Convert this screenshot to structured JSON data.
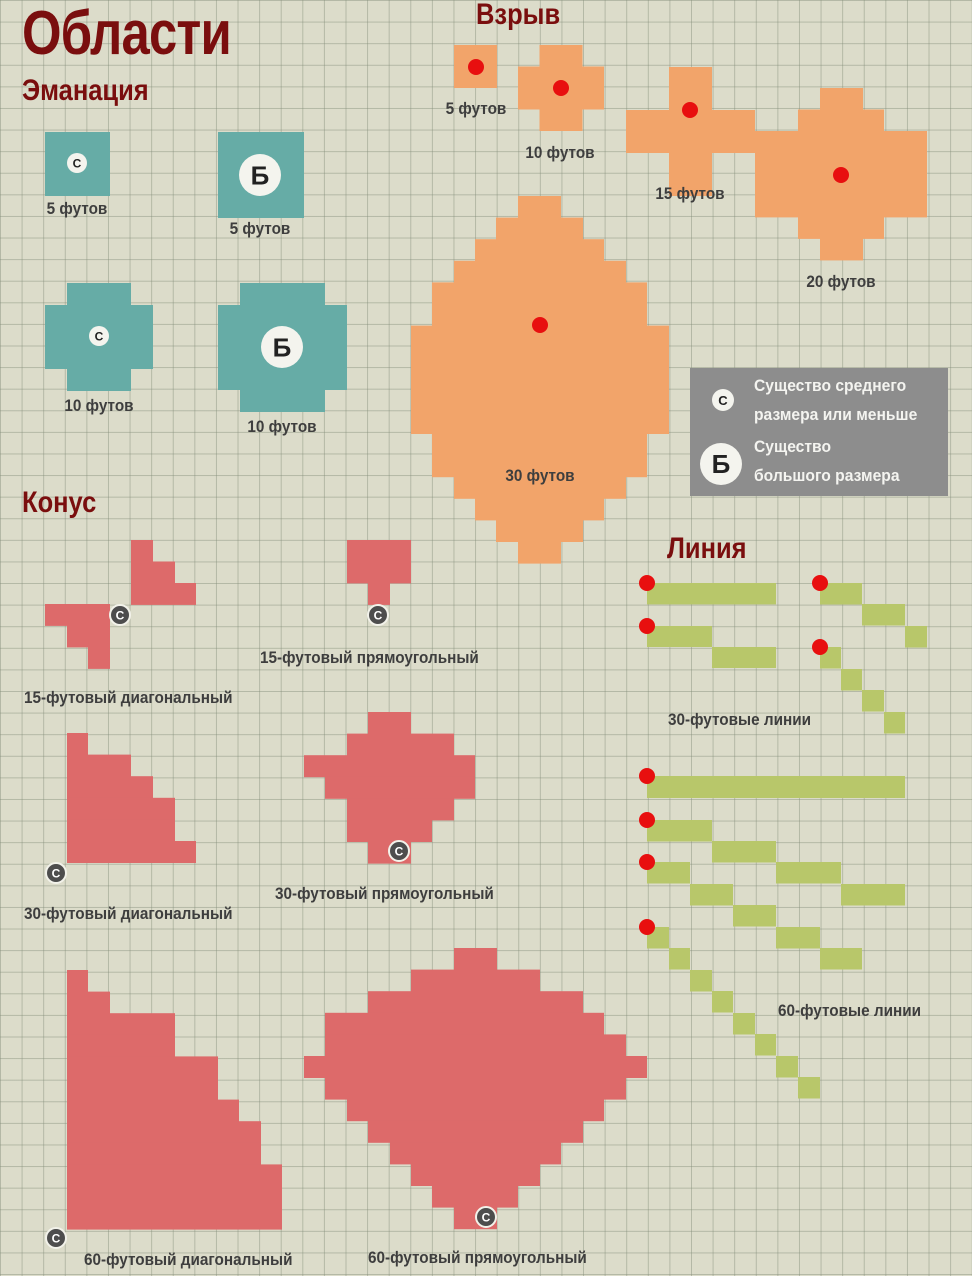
{
  "title": "Области",
  "sections": {
    "emanation": "Эманация",
    "burst": "Взрыв",
    "cone": "Конус",
    "line": "Линия"
  },
  "emanation_labels": [
    "5 футов",
    "5 футов",
    "10 футов",
    "10 футов"
  ],
  "burst_labels": [
    "5 футов",
    "10 футов",
    "15 футов",
    "20 футов",
    "30 футов"
  ],
  "cone_labels": {
    "d15": "15-футовый диагональный",
    "r15": "15-футовый прямоугольный",
    "d30": "30-футовый диагональный",
    "r30": "30-футовый прямоугольный",
    "d60": "60-футовый диагональный",
    "r60": "60-футовый прямоугольный"
  },
  "line_labels": {
    "l30": "30-футовые линии",
    "l60": "60-футовые линии"
  },
  "markers": {
    "medium": "С",
    "large": "Б"
  },
  "legend": {
    "medium_line1": "Существо среднего",
    "medium_line2": "размера или меньше",
    "large_line1": "Существо",
    "large_line2": "большого размера"
  },
  "colors": {
    "background": "#dcdcca",
    "emanation": "#66aca6",
    "burst": "#f2a46a",
    "cone": "#dd6a6a",
    "line": "#b8c76a",
    "origin_dot": "#e80f0f",
    "heading": "#7a0e0e",
    "legend_bg": "#8d8d8d"
  }
}
